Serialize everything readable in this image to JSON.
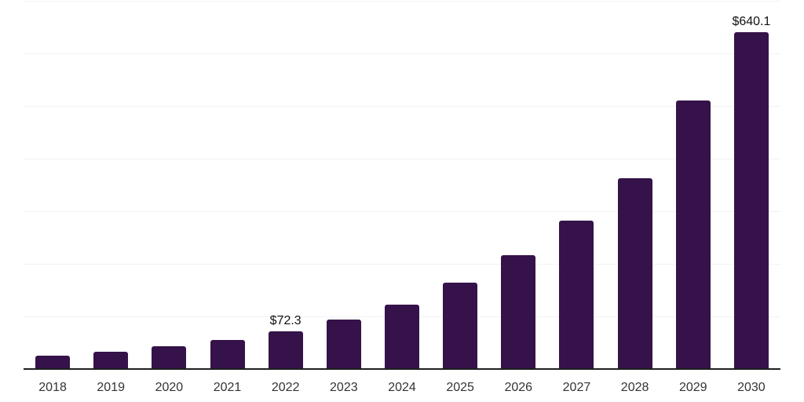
{
  "chart": {
    "background_color": "#ffffff",
    "bar_color": "#351249",
    "gridline_color": "#f2f2f2",
    "axis_line_color": "#1f1f1f",
    "tick_label_color": "#333333",
    "data_label_color": "#111111"
  },
  "chart_data": {
    "type": "bar",
    "categories": [
      "2018",
      "2019",
      "2020",
      "2021",
      "2022",
      "2023",
      "2024",
      "2025",
      "2026",
      "2027",
      "2028",
      "2029",
      "2030"
    ],
    "values": [
      24.9,
      33.2,
      43.2,
      55.6,
      72.3,
      93.8,
      122.6,
      164.9,
      216.4,
      282.1,
      362.2,
      510.0,
      640.1
    ],
    "data_labels": {
      "2022": "$72.3",
      "2030": "$640.1"
    },
    "xlabel": "",
    "ylabel": "",
    "ylim": [
      0,
      700
    ],
    "gridlines": [
      100,
      200,
      300,
      400,
      500,
      600,
      700
    ],
    "grid": "horizontal",
    "legend": "none",
    "y_axis_ticks_visible": false
  }
}
